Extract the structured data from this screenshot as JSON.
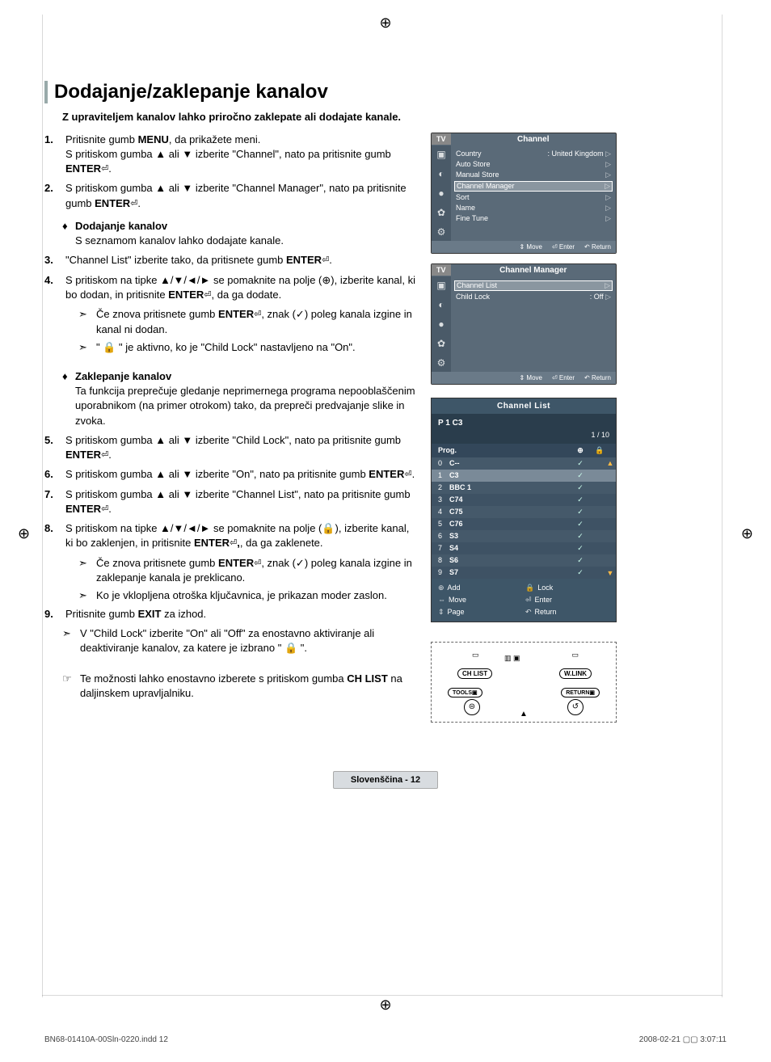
{
  "title": "Dodajanje/zaklepanje kanalov",
  "intro": "Z upraviteljem kanalov lahko priročno zaklepate ali dodajate kanale.",
  "steps": {
    "s1": {
      "num": "1.",
      "body_a": "Pritisnite gumb ",
      "body_b": "MENU",
      "body_c": ", da prikažete meni.\nS pritiskom gumba ▲ ali ▼ izberite \"Channel\", nato pa pritisnite gumb ",
      "body_d": "ENTER",
      "body_e": "."
    },
    "s2": {
      "num": "2.",
      "body_a": "S pritiskom gumba ▲ ali ▼ izberite \"Channel Manager\", nato pa pritisnite gumb ",
      "body_b": "ENTER",
      "body_c": "."
    },
    "s3": {
      "num": "3.",
      "body_a": "\"Channel List\" izberite tako, da pritisnete gumb ",
      "body_b": "ENTER",
      "body_c": "."
    },
    "s4": {
      "num": "4.",
      "body_a": "S pritiskom na tipke ▲/▼/◄/► se pomaknite na polje (⊕), izberite kanal, ki bo dodan, in pritisnite ",
      "body_b": "ENTER",
      "body_c": ", da ga dodate."
    },
    "s5": {
      "num": "5.",
      "body_a": "S pritiskom gumba ▲ ali ▼ izberite \"Child Lock\", nato pa pritisnite gumb ",
      "body_b": "ENTER",
      "body_c": "."
    },
    "s6": {
      "num": "6.",
      "body_a": "S pritiskom gumba ▲ ali ▼ izberite \"On\", nato pa pritisnite gumb ",
      "body_b": "ENTER",
      "body_c": "."
    },
    "s7": {
      "num": "7.",
      "body_a": "S pritiskom gumba ▲ ali ▼ izberite \"Channel List\", nato pa pritisnite gumb ",
      "body_b": "ENTER",
      "body_c": "."
    },
    "s8": {
      "num": "8.",
      "body_a": "S pritiskom na tipke ▲/▼/◄/► se pomaknite na polje (🔒), izberite kanal, ki bo zaklenjen, in pritisnite ",
      "body_b": "ENTER",
      "body_c": ", da ga zaklenete.",
      "body_bold": ","
    },
    "s9": {
      "num": "9.",
      "body_a": "Pritisnite gumb ",
      "body_b": "EXIT",
      "body_c": " za izhod."
    }
  },
  "sub": {
    "add": {
      "title": "Dodajanje kanalov",
      "desc": "S seznamom kanalov lahko dodajate kanale."
    },
    "lock": {
      "title": "Zaklepanje kanalov",
      "desc": "Ta funkcija preprečuje gledanje neprimernega programa nepooblaščenim uporabnikom (na primer otrokom) tako, da prepreči predvajanje slike in zvoka."
    }
  },
  "arrows": {
    "a1": {
      "a": "Če znova pritisnete gumb ",
      "b": "ENTER",
      "c": ", znak (✓) poleg kanala izgine in kanal ni dodan."
    },
    "a2": "\" 🔒 \" je aktivno, ko je \"Child Lock\" nastavljeno na \"On\".",
    "a3": {
      "a": "Če znova pritisnete gumb ",
      "b": "ENTER",
      "c": ", znak (✓) poleg kanala izgine in zaklepanje kanala je preklicano."
    },
    "a4": "Ko je vklopljena otroška ključavnica, je prikazan moder zaslon."
  },
  "note": "V \"Child Lock\" izberite \"On\" ali \"Off\" za enostavno aktiviranje ali deaktiviranje kanalov, za katere je izbrano \" 🔒 \".",
  "tip": {
    "a": "Te možnosti lahko enostavno izberete s pritiskom gumba ",
    "b": "CH LIST",
    "c": " na daljinskem upravljalniku."
  },
  "screen1": {
    "tv": "TV",
    "title": "Channel",
    "rows": [
      {
        "label": "Country",
        "val": ": United Kingdom"
      },
      {
        "label": "Auto Store",
        "val": ""
      },
      {
        "label": "Manual Store",
        "val": ""
      },
      {
        "label": "Channel Manager",
        "val": "",
        "hl": true
      },
      {
        "label": "Sort",
        "val": ""
      },
      {
        "label": "Name",
        "val": ""
      },
      {
        "label": "Fine Tune",
        "val": ""
      }
    ],
    "foot": {
      "move": "Move",
      "enter": "Enter",
      "return": "Return"
    }
  },
  "screen2": {
    "tv": "TV",
    "title": "Channel Manager",
    "rows": [
      {
        "label": "Channel List",
        "val": "",
        "hl": true
      },
      {
        "label": "Child Lock",
        "val": ": Off"
      }
    ],
    "foot": {
      "move": "Move",
      "enter": "Enter",
      "return": "Return"
    }
  },
  "screen3": {
    "title": "Channel List",
    "p": "P  1  C3",
    "page": "1 / 10",
    "col1": "Prog.",
    "col2": "⊕",
    "col3": "🔒",
    "rows": [
      {
        "n": "0",
        "nm": "C--",
        "c": "✓",
        "l": "",
        "hl": false
      },
      {
        "n": "1",
        "nm": "C3",
        "c": "✓",
        "l": "",
        "hl": true
      },
      {
        "n": "2",
        "nm": "BBC 1",
        "c": "✓",
        "l": "",
        "hl": false
      },
      {
        "n": "3",
        "nm": "C74",
        "c": "✓",
        "l": "",
        "hl": false
      },
      {
        "n": "4",
        "nm": "C75",
        "c": "✓",
        "l": "",
        "hl": false
      },
      {
        "n": "5",
        "nm": "C76",
        "c": "✓",
        "l": "",
        "hl": false
      },
      {
        "n": "6",
        "nm": "S3",
        "c": "✓",
        "l": "",
        "hl": false
      },
      {
        "n": "7",
        "nm": "S4",
        "c": "✓",
        "l": "",
        "hl": false
      },
      {
        "n": "8",
        "nm": "S6",
        "c": "✓",
        "l": "",
        "hl": false
      },
      {
        "n": "9",
        "nm": "S7",
        "c": "✓",
        "l": "",
        "hl": false
      }
    ],
    "legend": {
      "add": "Add",
      "lock": "Lock",
      "move": "Move",
      "enter": "Enter",
      "page": "Page",
      "return": "Return"
    }
  },
  "remote": {
    "chlist": "CH LIST",
    "wlink": "W.LINK",
    "tools": "TOOLS",
    "return": "RETURN"
  },
  "badge": "Slovenščina - 12",
  "footer": {
    "left": "BN68-01410A-00Sln-0220.indd   12",
    "right": "2008-02-21   ▢▢ 3:07:11"
  },
  "colors": {
    "screen_bg": "#5a6a78",
    "panel_bg": "#3e5668",
    "row_alt": "#45596a",
    "highlight": "#7a8a98"
  }
}
